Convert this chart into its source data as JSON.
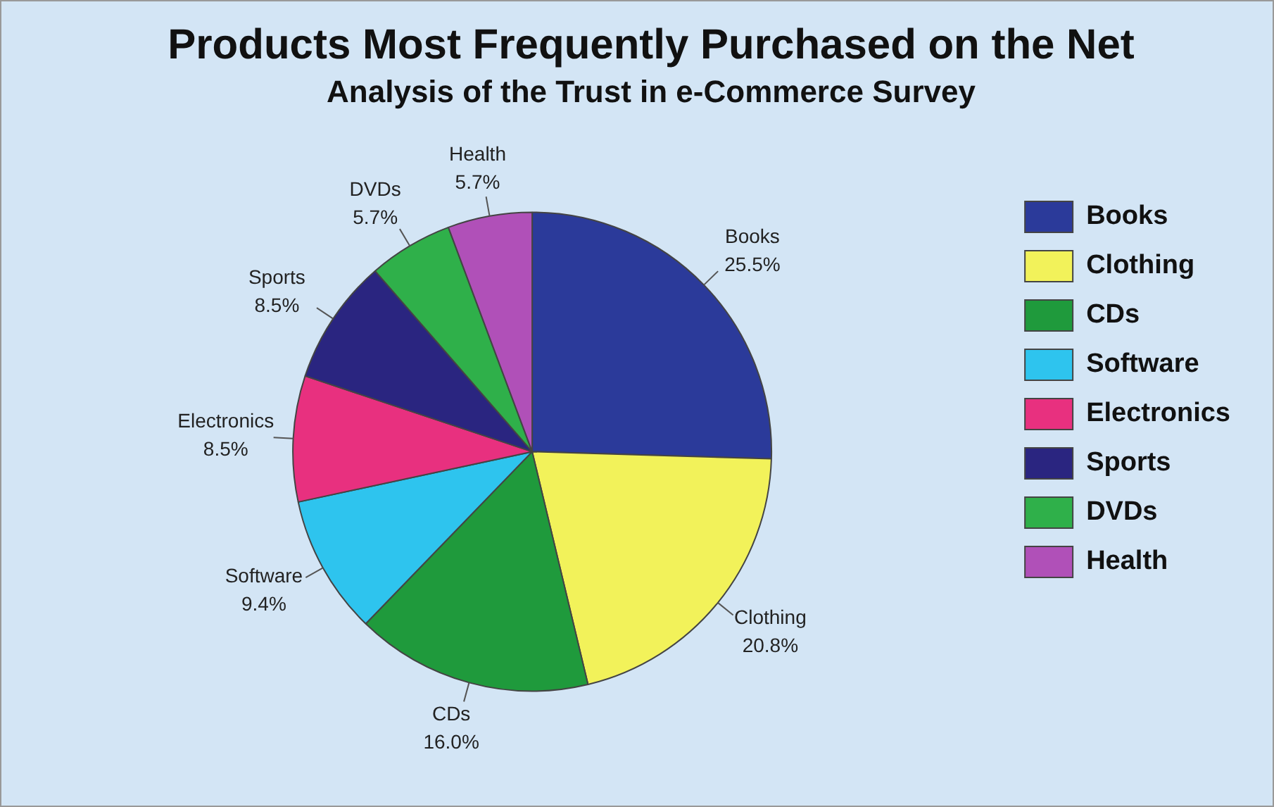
{
  "chart_data": {
    "type": "pie",
    "title": "Products Most Frequently Purchased on the Net",
    "subtitle": "Analysis of the Trust in e-Commerce Survey",
    "categories": [
      "Books",
      "Clothing",
      "CDs",
      "Software",
      "Electronics",
      "Sports",
      "DVDs",
      "Health"
    ],
    "values": [
      25.5,
      20.8,
      16.0,
      9.4,
      8.5,
      8.5,
      5.7,
      5.7
    ],
    "value_labels": [
      "25.5%",
      "20.8%",
      "16.0%",
      "9.4%",
      "8.5%",
      "8.5%",
      "5.7%",
      "5.7%"
    ],
    "colors": [
      "#2b3a9a",
      "#f2f25a",
      "#1f9a3c",
      "#2ec4ee",
      "#e8307f",
      "#2a2580",
      "#2fb04a",
      "#b050b8"
    ],
    "legend": "right"
  }
}
